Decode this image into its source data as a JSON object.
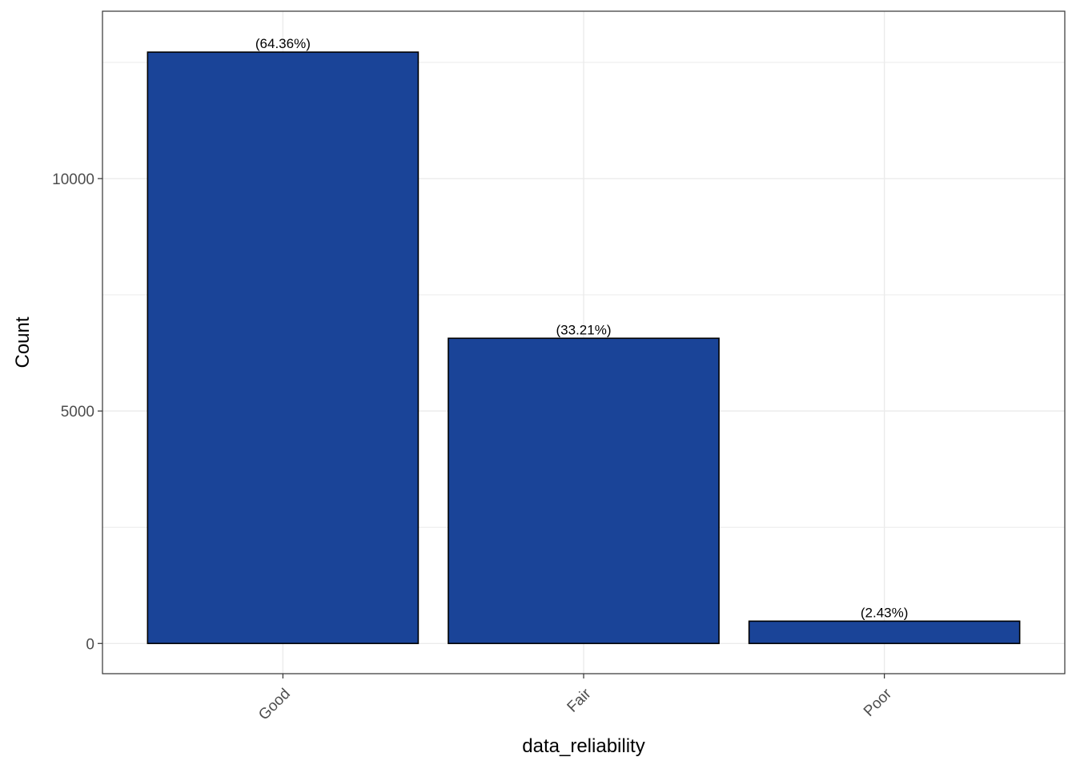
{
  "chart_data": {
    "type": "bar",
    "categories": [
      "Good",
      "Fair",
      "Poor"
    ],
    "values": [
      12720,
      6565,
      480
    ],
    "data_labels": [
      "(64.36%)",
      "(33.21%)",
      "(2.43%)"
    ],
    "xlabel": "data_reliability",
    "ylabel": "Count",
    "ylim": [
      -650,
      13600
    ],
    "yticks": [
      0,
      5000,
      10000
    ],
    "ytick_labels": [
      "0",
      "5000",
      "10000"
    ],
    "grid": true,
    "legend": "none",
    "bar_color": "#1A4498",
    "bar_outline_color": "#000000",
    "panel_border_color": "#333333",
    "grid_color": "#EBEBEB"
  }
}
